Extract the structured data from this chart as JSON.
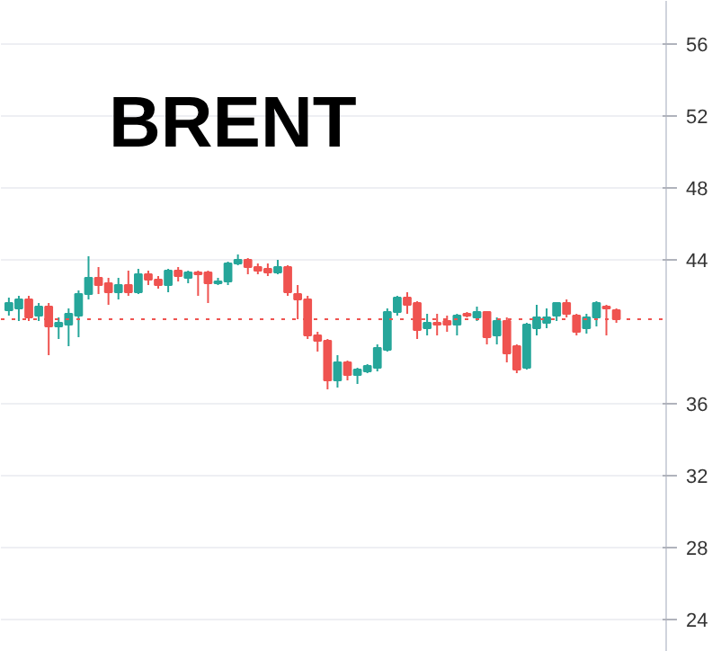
{
  "chart_data": {
    "type": "candlestick",
    "title": "BRENT",
    "categories": [
      null,
      null,
      null,
      null,
      null,
      null,
      null,
      null,
      null,
      null,
      null,
      null,
      null,
      null,
      null,
      null,
      null,
      null,
      null,
      null,
      null,
      null,
      null,
      null,
      null,
      null,
      null,
      null,
      null,
      null,
      null,
      null,
      null,
      null,
      null,
      null,
      null,
      null,
      null,
      null,
      null,
      null,
      null,
      null,
      null,
      null,
      null,
      null,
      null,
      null,
      null,
      null,
      null,
      null,
      null,
      null,
      null,
      null,
      null,
      null,
      null,
      null
    ],
    "ohlc": [
      [
        41.2,
        41.9,
        40.9,
        41.6
      ],
      [
        41.3,
        42.0,
        40.6,
        41.8
      ],
      [
        41.8,
        42.0,
        40.6,
        40.8
      ],
      [
        40.9,
        41.6,
        40.6,
        41.4
      ],
      [
        41.4,
        41.6,
        38.7,
        40.3
      ],
      [
        40.3,
        40.8,
        39.6,
        40.5
      ],
      [
        40.4,
        41.3,
        39.2,
        41.0
      ],
      [
        40.9,
        42.3,
        39.7,
        42.1
      ],
      [
        42.1,
        44.2,
        41.8,
        43.0
      ],
      [
        43.0,
        43.6,
        42.1,
        42.6
      ],
      [
        42.7,
        43.0,
        41.5,
        42.2
      ],
      [
        42.2,
        43.0,
        41.8,
        42.6
      ],
      [
        42.6,
        43.4,
        42.0,
        42.2
      ],
      [
        42.2,
        43.5,
        42.1,
        43.2
      ],
      [
        43.2,
        43.4,
        42.6,
        42.9
      ],
      [
        42.9,
        43.1,
        42.4,
        42.6
      ],
      [
        42.6,
        43.5,
        42.2,
        43.4
      ],
      [
        43.4,
        43.6,
        42.8,
        43.1
      ],
      [
        43.0,
        43.4,
        42.7,
        43.3
      ],
      [
        43.3,
        43.4,
        42.0,
        43.2
      ],
      [
        43.3,
        43.4,
        41.6,
        42.7
      ],
      [
        42.7,
        43.0,
        42.6,
        42.8
      ],
      [
        42.8,
        43.9,
        42.6,
        43.8
      ],
      [
        43.8,
        44.3,
        43.7,
        44.0
      ],
      [
        44.0,
        44.1,
        43.2,
        43.6
      ],
      [
        43.6,
        43.8,
        43.2,
        43.4
      ],
      [
        43.5,
        43.8,
        43.1,
        43.3
      ],
      [
        43.3,
        44.0,
        43.2,
        43.6
      ],
      [
        43.6,
        43.7,
        42.0,
        42.2
      ],
      [
        42.1,
        42.6,
        40.7,
        41.8
      ],
      [
        41.8,
        42.0,
        39.6,
        39.8
      ],
      [
        39.8,
        40.0,
        38.9,
        39.5
      ],
      [
        39.5,
        39.6,
        36.8,
        37.3
      ],
      [
        37.3,
        38.7,
        36.9,
        38.3
      ],
      [
        38.3,
        38.4,
        37.3,
        37.6
      ],
      [
        37.6,
        38.0,
        37.1,
        37.9
      ],
      [
        37.8,
        38.2,
        37.7,
        38.1
      ],
      [
        38.0,
        39.3,
        37.8,
        39.1
      ],
      [
        39.0,
        41.3,
        38.9,
        41.1
      ],
      [
        41.1,
        42.0,
        40.9,
        41.9
      ],
      [
        41.9,
        42.2,
        41.0,
        41.5
      ],
      [
        41.6,
        41.7,
        39.6,
        40.1
      ],
      [
        40.2,
        41.0,
        39.8,
        40.5
      ],
      [
        40.5,
        41.0,
        39.8,
        40.4
      ],
      [
        40.6,
        40.9,
        40.0,
        40.4
      ],
      [
        40.4,
        41.0,
        39.8,
        40.9
      ],
      [
        41.0,
        41.1,
        40.8,
        40.9
      ],
      [
        40.8,
        41.4,
        40.6,
        41.1
      ],
      [
        41.1,
        41.1,
        39.3,
        39.7
      ],
      [
        39.8,
        40.8,
        39.3,
        40.6
      ],
      [
        40.6,
        40.8,
        38.3,
        38.8
      ],
      [
        39.2,
        39.3,
        37.7,
        37.9
      ],
      [
        38.0,
        40.5,
        37.9,
        40.4
      ],
      [
        40.2,
        41.5,
        39.8,
        40.8
      ],
      [
        40.5,
        41.3,
        40.2,
        40.8
      ],
      [
        40.9,
        41.6,
        40.6,
        41.6
      ],
      [
        41.6,
        41.8,
        40.8,
        41.0
      ],
      [
        40.9,
        41.0,
        39.8,
        40.0
      ],
      [
        40.2,
        41.0,
        39.9,
        40.8
      ],
      [
        40.8,
        41.7,
        40.3,
        41.6
      ],
      [
        41.4,
        41.5,
        39.8,
        41.3
      ],
      [
        41.2,
        41.3,
        40.5,
        40.7
      ]
    ],
    "colors": [
      "#26a69a",
      "#26a69a",
      "#ef5350",
      "#26a69a",
      "#ef5350",
      "#26a69a",
      "#26a69a",
      "#26a69a",
      "#26a69a",
      "#ef5350",
      "#ef5350",
      "#26a69a",
      "#ef5350",
      "#26a69a",
      "#ef5350",
      "#ef5350",
      "#26a69a",
      "#ef5350",
      "#26a69a",
      "#ef5350",
      "#ef5350",
      "#26a69a",
      "#26a69a",
      "#26a69a",
      "#ef5350",
      "#ef5350",
      "#ef5350",
      "#26a69a",
      "#ef5350",
      "#ef5350",
      "#ef5350",
      "#ef5350",
      "#ef5350",
      "#26a69a",
      "#ef5350",
      "#26a69a",
      "#26a69a",
      "#26a69a",
      "#26a69a",
      "#26a69a",
      "#ef5350",
      "#ef5350",
      "#26a69a",
      "#ef5350",
      "#ef5350",
      "#26a69a",
      "#ef5350",
      "#26a69a",
      "#ef5350",
      "#26a69a",
      "#ef5350",
      "#ef5350",
      "#26a69a",
      "#26a69a",
      "#26a69a",
      "#26a69a",
      "#ef5350",
      "#ef5350",
      "#26a69a",
      "#26a69a",
      "#ef5350",
      "#ef5350"
    ],
    "ylim": [
      22.2,
      58.4
    ],
    "yticks": [
      24,
      28,
      32,
      36,
      44,
      48,
      52,
      56
    ],
    "ref_lines": [
      {
        "axis": "y",
        "value": 40.7,
        "color": "#ef5350",
        "line_style": "dotted"
      }
    ],
    "grid": "y"
  }
}
